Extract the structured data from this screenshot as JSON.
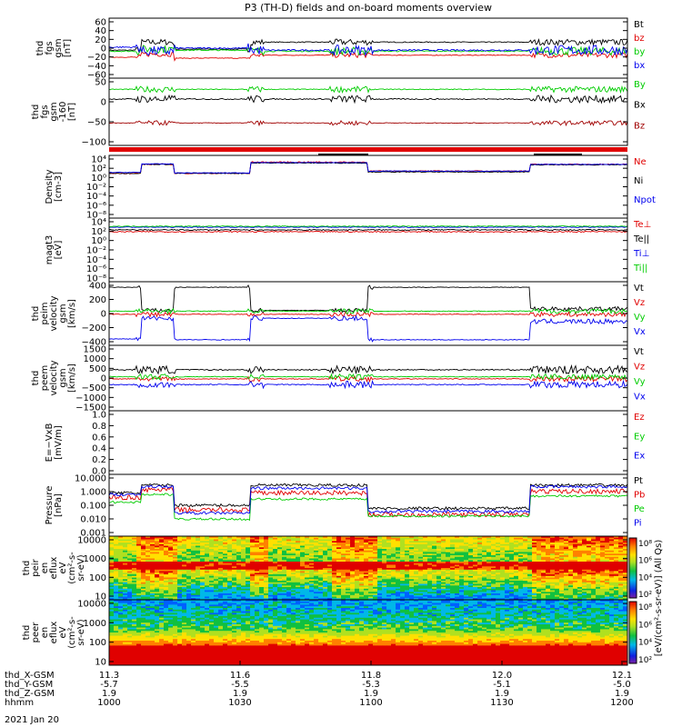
{
  "title": "P3 (TH-D) fields and on-board moments overview",
  "chart_data": [
    {
      "type": "line",
      "ylabel": [
        "thd",
        "fgs",
        "gsm",
        "[nT]"
      ],
      "yticks": [
        "60",
        "40",
        "20",
        "0",
        "−20",
        "−40",
        "−60"
      ],
      "ylim": [
        -60,
        60
      ],
      "series": [
        {
          "name": "Bt",
          "color": "#000000"
        },
        {
          "name": "bz",
          "color": "#e00000"
        },
        {
          "name": "by",
          "color": "#00cc00"
        },
        {
          "name": "bx",
          "color": "#0000ee"
        }
      ]
    },
    {
      "type": "line",
      "ylabel": [
        "thd",
        "fgs",
        "gsm",
        "-160",
        "[nT]"
      ],
      "yticks": [
        "50",
        "0",
        "−50",
        "−100"
      ],
      "ylim": [
        -120,
        60
      ],
      "series": [
        {
          "name": "By",
          "color": "#00cc00"
        },
        {
          "name": "Bx",
          "color": "#000000"
        },
        {
          "name": "Bz",
          "color": "#a00000"
        }
      ]
    },
    {
      "type": "line",
      "ylabel": [
        "Density",
        "[cm-3]"
      ],
      "yticks": [
        "10⁴",
        "10²",
        "10⁰",
        "10⁻²",
        "10⁻⁴",
        "10⁻⁶",
        "10⁻⁸"
      ],
      "scale": "log",
      "series": [
        {
          "name": "Ne",
          "color": "#e00000"
        },
        {
          "name": "Ni",
          "color": "#000000"
        },
        {
          "name": "Npot",
          "color": "#0000ee"
        }
      ]
    },
    {
      "type": "line",
      "ylabel": [
        "magt3",
        "[eV]"
      ],
      "yticks": [
        "10⁴",
        "10²",
        "10⁰",
        "10⁻²",
        "10⁻⁴",
        "10⁻⁶",
        "10⁻⁸"
      ],
      "scale": "log",
      "series": [
        {
          "name": "Te⊥",
          "color": "#e00000"
        },
        {
          "name": "Te||",
          "color": "#000000"
        },
        {
          "name": "Ti⊥",
          "color": "#0000ee"
        },
        {
          "name": "Ti||",
          "color": "#00cc00"
        }
      ]
    },
    {
      "type": "line",
      "ylabel": [
        "thd",
        "peim",
        "velocity",
        "gsm",
        "[km/s]"
      ],
      "yticks": [
        "400",
        "200",
        "0",
        "−200",
        "−400"
      ],
      "ylim": [
        -400,
        400
      ],
      "series": [
        {
          "name": "Vt",
          "color": "#000000"
        },
        {
          "name": "Vz",
          "color": "#e00000"
        },
        {
          "name": "Vy",
          "color": "#00cc00"
        },
        {
          "name": "Vx",
          "color": "#0000ee"
        }
      ]
    },
    {
      "type": "line",
      "ylabel": [
        "thd",
        "peem",
        "velocity",
        "gsm",
        "[km/s]"
      ],
      "yticks": [
        "1500",
        "1000",
        "500",
        "0",
        "−500",
        "−1000",
        "−1500"
      ],
      "ylim": [
        -1500,
        1500
      ],
      "series": [
        {
          "name": "Vt",
          "color": "#000000"
        },
        {
          "name": "Vz",
          "color": "#e00000"
        },
        {
          "name": "Vy",
          "color": "#00cc00"
        },
        {
          "name": "Vx",
          "color": "#0000ee"
        }
      ]
    },
    {
      "type": "line",
      "ylabel": [
        "E=−VxB",
        "[mV/m]"
      ],
      "yticks": [
        "1.0",
        "0.8",
        "0.6",
        "0.4",
        "0.2",
        "0.0"
      ],
      "ylim": [
        0,
        1
      ],
      "series": [
        {
          "name": "Ez",
          "color": "#e00000"
        },
        {
          "name": "Ey",
          "color": "#00cc00"
        },
        {
          "name": "Ex",
          "color": "#0000ee"
        }
      ]
    },
    {
      "type": "line",
      "ylabel": [
        "Pressure",
        "[nPa]"
      ],
      "yticks": [
        "10.000",
        "1.000",
        "0.100",
        "0.010",
        "0.001"
      ],
      "scale": "log",
      "series": [
        {
          "name": "Pt",
          "color": "#000000"
        },
        {
          "name": "Pb",
          "color": "#e00000"
        },
        {
          "name": "Pe",
          "color": "#00cc00"
        },
        {
          "name": "Pi",
          "color": "#0000ee"
        }
      ]
    },
    {
      "type": "heatmap",
      "ylabel": [
        "thd",
        "peir",
        "en",
        "eflux",
        "eV",
        "(cm²-s-",
        "sr-eV)"
      ],
      "yticks": [
        "10000",
        "1000",
        "100",
        "10"
      ]
    },
    {
      "type": "heatmap",
      "ylabel": [
        "thd",
        "peer",
        "en",
        "eflux",
        "eV",
        "(cm²-s-",
        "sr-eV)"
      ],
      "yticks": [
        "10000",
        "1000",
        "100",
        "10"
      ]
    }
  ],
  "colorbar": {
    "label": "[eV/(cm²-s-sr-eV)] (All Qs)",
    "ticks_top": [
      "10⁸",
      "10⁶",
      "10⁴",
      "10²"
    ],
    "ticks_bottom": [
      "10⁸",
      "10⁶",
      "10⁴",
      "10²"
    ]
  },
  "xaxis": {
    "rows": [
      {
        "label": "thd_X-GSM",
        "values": [
          "11.3",
          "11.6",
          "11.8",
          "12.0",
          "12.1"
        ]
      },
      {
        "label": "thd_Y-GSM",
        "values": [
          "-5.7",
          "-5.5",
          "-5.3",
          "-5.1",
          "-5.0"
        ]
      },
      {
        "label": "thd_Z-GSM",
        "values": [
          "1.9",
          "1.9",
          "1.9",
          "1.9",
          "1.9"
        ]
      },
      {
        "label": "hhmm",
        "values": [
          "1000",
          "1030",
          "1100",
          "1130",
          "1200"
        ]
      }
    ],
    "date": "2021 Jan 20"
  }
}
